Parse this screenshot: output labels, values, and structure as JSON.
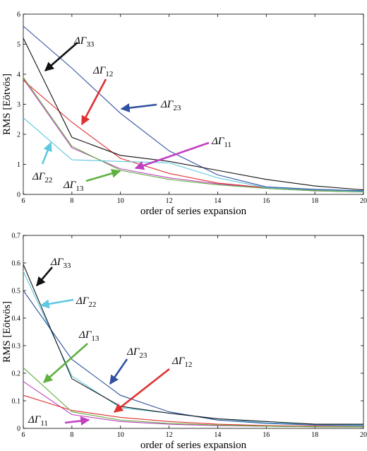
{
  "chart_data": [
    {
      "type": "line",
      "xlabel": "order of series expansion",
      "ylabel": "RMS [Eötvös]",
      "xlim": [
        6,
        20
      ],
      "ylim": [
        0,
        6
      ],
      "xticks": [
        "6",
        "8",
        "10",
        "12",
        "14",
        "16",
        "18",
        "20"
      ],
      "yticks": [
        "0",
        "1",
        "2",
        "3",
        "4",
        "5",
        "6"
      ],
      "x": [
        6,
        8,
        10,
        12,
        14,
        16,
        18,
        20
      ],
      "series": [
        {
          "name": "ΔΓ11",
          "color": "#c040c0",
          "values": [
            3.85,
            1.55,
            0.85,
            0.55,
            0.35,
            0.2,
            0.12,
            0.08
          ]
        },
        {
          "name": "ΔΓ12",
          "color": "#e03030",
          "values": [
            3.8,
            2.4,
            1.2,
            0.7,
            0.38,
            0.22,
            0.14,
            0.1
          ]
        },
        {
          "name": "ΔΓ13",
          "color": "#60b040",
          "values": [
            3.9,
            1.6,
            0.8,
            0.5,
            0.32,
            0.2,
            0.12,
            0.08
          ]
        },
        {
          "name": "ΔΓ22",
          "color": "#60c8e0",
          "values": [
            2.55,
            1.15,
            1.1,
            1.05,
            0.55,
            0.22,
            0.15,
            0.1
          ]
        },
        {
          "name": "ΔΓ23",
          "color": "#3050a0",
          "values": [
            5.6,
            4.2,
            2.7,
            1.45,
            0.65,
            0.25,
            0.17,
            0.12
          ]
        },
        {
          "name": "ΔΓ33",
          "color": "#111111",
          "values": [
            5.2,
            1.9,
            1.3,
            1.1,
            0.8,
            0.5,
            0.28,
            0.15
          ]
        }
      ],
      "annotations": [
        {
          "base": "ΔΓ",
          "sub": "33"
        },
        {
          "base": "ΔΓ",
          "sub": "12"
        },
        {
          "base": "ΔΓ",
          "sub": "23"
        },
        {
          "base": "ΔΓ",
          "sub": "11"
        },
        {
          "base": "ΔΓ",
          "sub": "22"
        },
        {
          "base": "ΔΓ",
          "sub": "13"
        }
      ]
    },
    {
      "type": "line",
      "xlabel": "order of series expansion",
      "ylabel": "RMS [Eötvös]",
      "xlim": [
        6,
        20
      ],
      "ylim": [
        0,
        0.7
      ],
      "xticks": [
        "6",
        "8",
        "10",
        "12",
        "14",
        "16",
        "18",
        "20"
      ],
      "yticks": [
        "0",
        "0.1",
        "0.2",
        "0.3",
        "0.4",
        "0.5",
        "0.6",
        "0.7"
      ],
      "x": [
        6,
        8,
        10,
        12,
        14,
        16,
        18,
        20
      ],
      "series": [
        {
          "name": "ΔΓ11",
          "color": "#c040c0",
          "values": [
            0.17,
            0.05,
            0.025,
            0.015,
            0.01,
            0.008,
            0.006,
            0.005
          ]
        },
        {
          "name": "ΔΓ12",
          "color": "#e03030",
          "values": [
            0.12,
            0.065,
            0.04,
            0.025,
            0.015,
            0.01,
            0.008,
            0.006
          ]
        },
        {
          "name": "ΔΓ13",
          "color": "#60b040",
          "values": [
            0.22,
            0.06,
            0.03,
            0.018,
            0.012,
            0.008,
            0.006,
            0.005
          ]
        },
        {
          "name": "ΔΓ22",
          "color": "#60c8e0",
          "values": [
            0.57,
            0.19,
            0.075,
            0.055,
            0.035,
            0.02,
            0.015,
            0.012
          ]
        },
        {
          "name": "ΔΓ23",
          "color": "#3050a0",
          "values": [
            0.5,
            0.25,
            0.12,
            0.06,
            0.03,
            0.018,
            0.012,
            0.01
          ]
        },
        {
          "name": "ΔΓ33",
          "color": "#111111",
          "values": [
            0.595,
            0.18,
            0.08,
            0.055,
            0.035,
            0.025,
            0.015,
            0.015
          ]
        }
      ],
      "annotations": [
        {
          "base": "ΔΓ",
          "sub": "33"
        },
        {
          "base": "ΔΓ",
          "sub": "22"
        },
        {
          "base": "ΔΓ",
          "sub": "13"
        },
        {
          "base": "ΔΓ",
          "sub": "23"
        },
        {
          "base": "ΔΓ",
          "sub": "12"
        },
        {
          "base": "ΔΓ",
          "sub": "11"
        }
      ]
    }
  ]
}
